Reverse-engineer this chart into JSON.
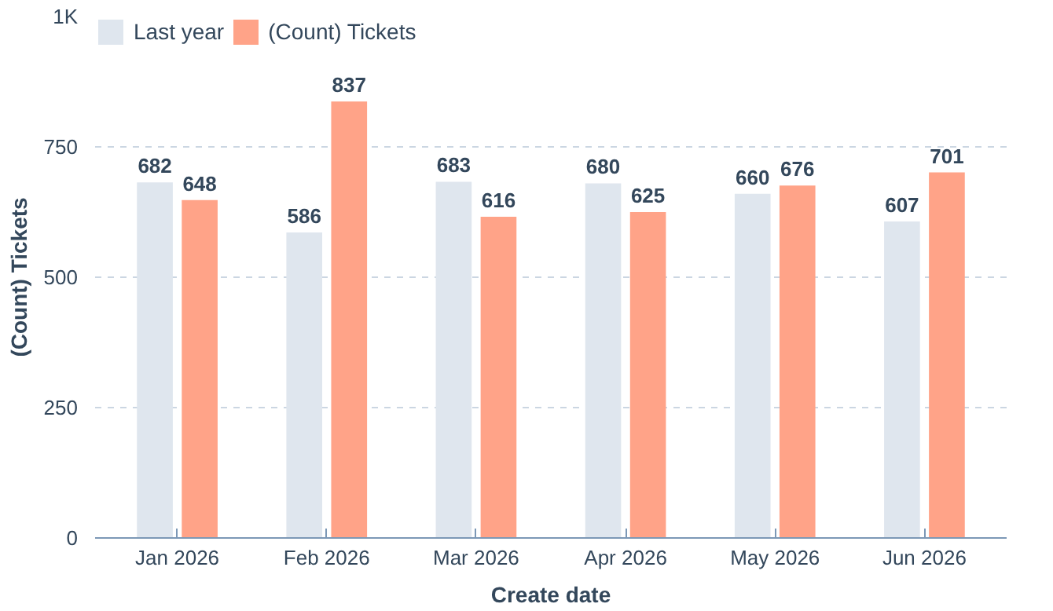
{
  "chart_data": {
    "type": "bar",
    "xlabel": "Create date",
    "ylabel": "(Count) Tickets",
    "categories": [
      "Jan 2026",
      "Feb 2026",
      "Mar 2026",
      "Apr 2026",
      "May 2026",
      "Jun 2026"
    ],
    "series": [
      {
        "name": "Last year",
        "color": "#dfe6ee",
        "values": [
          682,
          586,
          683,
          680,
          660,
          607
        ]
      },
      {
        "name": "(Count) Tickets",
        "color": "#ffa388",
        "values": [
          648,
          837,
          616,
          625,
          676,
          701
        ]
      }
    ],
    "ylim": [
      0,
      1000
    ],
    "yticks": [
      0,
      250,
      500,
      750,
      {
        "value": 1000,
        "label": "1K"
      }
    ],
    "grid": "y",
    "legend": "top left",
    "data_labels": true
  }
}
